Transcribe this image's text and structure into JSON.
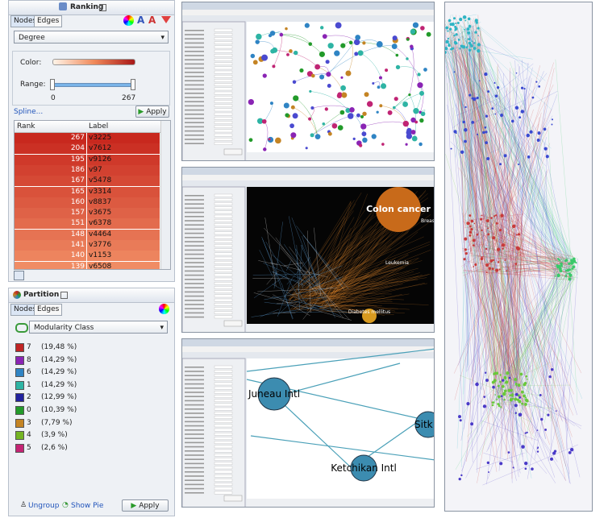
{
  "ranking": {
    "title": "Ranking",
    "tabs": [
      "Nodes",
      "Edges"
    ],
    "dropdown": "Degree",
    "color_label": "Color:",
    "range_label": "Range:",
    "range_min": "0",
    "range_max": "267",
    "spline": "Spline...",
    "apply": "Apply",
    "table": {
      "headers": [
        "Rank",
        "Label"
      ],
      "rows": [
        [
          "267",
          "v3225"
        ],
        [
          "204",
          "v7612"
        ],
        [
          "195",
          "v9126"
        ],
        [
          "186",
          "v97"
        ],
        [
          "167",
          "v5478"
        ],
        [
          "165",
          "v3314"
        ],
        [
          "160",
          "v8837"
        ],
        [
          "157",
          "v3675"
        ],
        [
          "151",
          "v6378"
        ],
        [
          "148",
          "v4464"
        ],
        [
          "141",
          "v3776"
        ],
        [
          "140",
          "v1153"
        ],
        [
          "139",
          "v6508"
        ]
      ]
    }
  },
  "partition": {
    "title": "Partition",
    "tabs": [
      "Nodes",
      "Edges"
    ],
    "dropdown": "Modularity Class",
    "items": [
      {
        "class": "7",
        "share": "(19,48 %)",
        "color": "#c02424"
      },
      {
        "class": "8",
        "share": "(14,29 %)",
        "color": "#8a24b4"
      },
      {
        "class": "6",
        "share": "(14,29 %)",
        "color": "#2f84c4"
      },
      {
        "class": "1",
        "share": "(14,29 %)",
        "color": "#2eb4a4"
      },
      {
        "class": "2",
        "share": "(12,99 %)",
        "color": "#22229e"
      },
      {
        "class": "0",
        "share": "(10,39 %)",
        "color": "#229a2a"
      },
      {
        "class": "3",
        "share": "(7,79 %)",
        "color": "#c48424"
      },
      {
        "class": "4",
        "share": "(3,9 %)",
        "color": "#74b424"
      },
      {
        "class": "5",
        "share": "(2,6 %)",
        "color": "#c42474"
      }
    ],
    "ungroup": "Ungroup",
    "show_pie": "Show Pie",
    "apply": "Apply"
  },
  "screenshots": {
    "second_labels": [
      "Colon cancer",
      "Breast",
      "Leukemia",
      "Diabetes mellitus"
    ],
    "third_labels": [
      "Juneau Intl",
      "Sitk",
      "Ketchikan Intl"
    ]
  }
}
